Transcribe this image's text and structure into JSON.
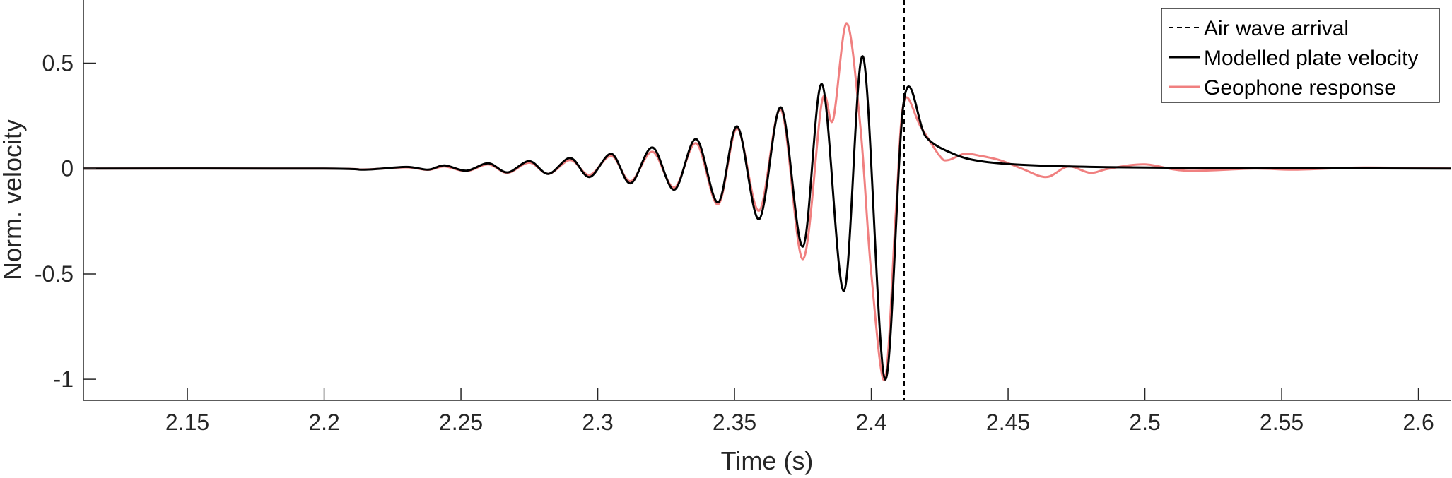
{
  "chart_data": {
    "type": "line",
    "title": "",
    "xlabel": "Time (s)",
    "ylabel": "Norm. velocity",
    "xlim": [
      2.112,
      2.612
    ],
    "ylim": [
      -1.1,
      0.8
    ],
    "x_ticks": [
      2.15,
      2.2,
      2.25,
      2.3,
      2.35,
      2.4,
      2.45,
      2.5,
      2.55,
      2.6
    ],
    "x_tick_labels": [
      "2.15",
      "2.2",
      "2.25",
      "2.3",
      "2.35",
      "2.4",
      "2.45",
      "2.5",
      "2.55",
      "2.6"
    ],
    "y_ticks": [
      0.5,
      0,
      -0.5,
      -1
    ],
    "y_tick_labels": [
      "0.5",
      "0",
      "-0.5",
      "-1"
    ],
    "grid": false,
    "legend_position": "top-right",
    "air_wave_arrival_time": 2.412,
    "series": [
      {
        "name": "Air wave arrival",
        "color": "#000000",
        "style": "dashed"
      },
      {
        "name": "Modelled plate velocity",
        "color": "#000000",
        "style": "solid",
        "points": [
          [
            2.112,
            0.0
          ],
          [
            2.2,
            0.0
          ],
          [
            2.215,
            -0.005
          ],
          [
            2.23,
            0.008
          ],
          [
            2.238,
            -0.005
          ],
          [
            2.244,
            0.015
          ],
          [
            2.252,
            -0.01
          ],
          [
            2.26,
            0.025
          ],
          [
            2.267,
            -0.018
          ],
          [
            2.275,
            0.035
          ],
          [
            2.282,
            -0.025
          ],
          [
            2.29,
            0.05
          ],
          [
            2.297,
            -0.04
          ],
          [
            2.305,
            0.07
          ],
          [
            2.312,
            -0.07
          ],
          [
            2.32,
            0.1
          ],
          [
            2.328,
            -0.1
          ],
          [
            2.336,
            0.14
          ],
          [
            2.344,
            -0.16
          ],
          [
            2.351,
            0.2
          ],
          [
            2.359,
            -0.24
          ],
          [
            2.367,
            0.29
          ],
          [
            2.375,
            -0.37
          ],
          [
            2.382,
            0.4
          ],
          [
            2.39,
            -0.58
          ],
          [
            2.397,
            0.53
          ],
          [
            2.405,
            -1.0
          ],
          [
            2.412,
            0.33
          ],
          [
            2.42,
            0.15
          ],
          [
            2.43,
            0.07
          ],
          [
            2.44,
            0.035
          ],
          [
            2.455,
            0.018
          ],
          [
            2.48,
            0.008
          ],
          [
            2.52,
            0.003
          ],
          [
            2.612,
            0.0
          ]
        ]
      },
      {
        "name": "Geophone response",
        "color": "#f08080",
        "style": "solid",
        "points": [
          [
            2.112,
            0.0
          ],
          [
            2.2,
            0.0
          ],
          [
            2.215,
            -0.004
          ],
          [
            2.23,
            0.006
          ],
          [
            2.238,
            -0.006
          ],
          [
            2.244,
            0.01
          ],
          [
            2.252,
            -0.012
          ],
          [
            2.26,
            0.02
          ],
          [
            2.267,
            -0.02
          ],
          [
            2.275,
            0.028
          ],
          [
            2.282,
            -0.025
          ],
          [
            2.29,
            0.04
          ],
          [
            2.297,
            -0.03
          ],
          [
            2.305,
            0.06
          ],
          [
            2.312,
            -0.06
          ],
          [
            2.32,
            0.08
          ],
          [
            2.328,
            -0.09
          ],
          [
            2.336,
            0.12
          ],
          [
            2.344,
            -0.17
          ],
          [
            2.351,
            0.19
          ],
          [
            2.359,
            -0.2
          ],
          [
            2.367,
            0.28
          ],
          [
            2.375,
            -0.43
          ],
          [
            2.382,
            0.32
          ],
          [
            2.386,
            0.23
          ],
          [
            2.391,
            0.69
          ],
          [
            2.396,
            0.2
          ],
          [
            2.4,
            -0.5
          ],
          [
            2.405,
            -1.0
          ],
          [
            2.409,
            -0.2
          ],
          [
            2.412,
            0.32
          ],
          [
            2.418,
            0.2
          ],
          [
            2.425,
            0.06
          ],
          [
            2.428,
            0.04
          ],
          [
            2.434,
            0.07
          ],
          [
            2.44,
            0.06
          ],
          [
            2.447,
            0.04
          ],
          [
            2.455,
            0.0
          ],
          [
            2.464,
            -0.04
          ],
          [
            2.472,
            0.01
          ],
          [
            2.48,
            -0.02
          ],
          [
            2.487,
            0.0
          ],
          [
            2.5,
            0.02
          ],
          [
            2.515,
            -0.01
          ],
          [
            2.54,
            0.0
          ],
          [
            2.555,
            -0.005
          ],
          [
            2.58,
            0.005
          ],
          [
            2.612,
            0.0
          ]
        ]
      }
    ]
  }
}
